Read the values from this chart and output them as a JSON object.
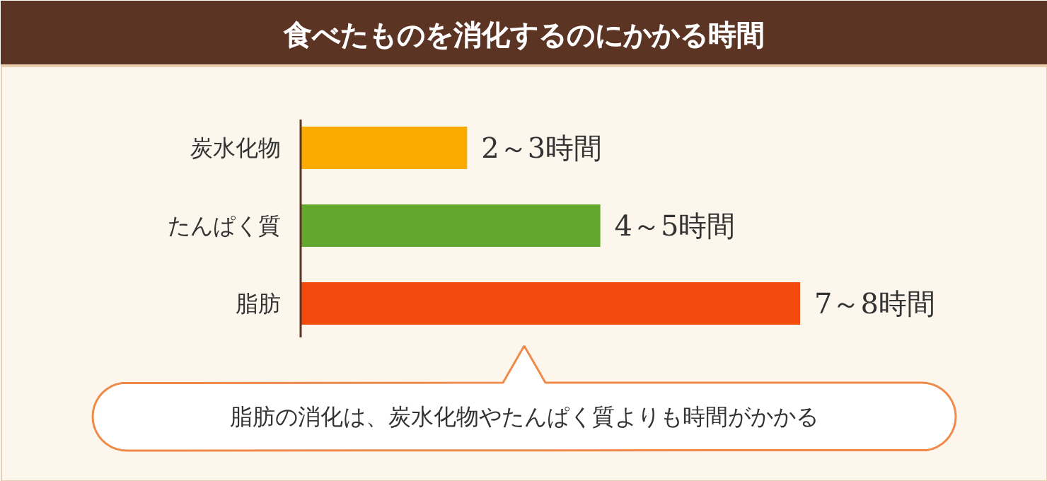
{
  "chart_data": {
    "type": "bar",
    "orientation": "horizontal",
    "title": "食べたものを消化するのにかかる時間",
    "categories": [
      "炭水化物",
      "たんぱく質",
      "脂肪"
    ],
    "values": [
      2.5,
      4.5,
      7.5
    ],
    "colors": [
      "#f9ab00",
      "#62a72e",
      "#f24a0c"
    ],
    "value_labels": [
      "2～3時間",
      "4～5時間",
      "7～8時間"
    ],
    "annotations": [
      "脂肪の消化は、炭水化物やたんぱく質よりも時間がかかる"
    ]
  }
}
